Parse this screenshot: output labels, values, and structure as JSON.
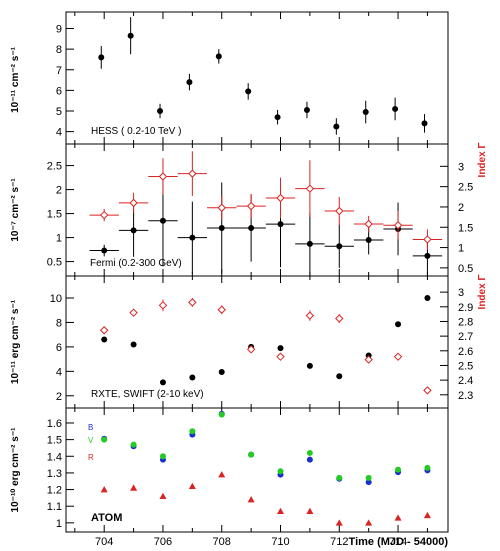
{
  "chart_data": {
    "type": "scatter",
    "shared_x": {
      "label": "Time (MJD - 54000)",
      "xlim": [
        702.7,
        715.7
      ],
      "tick_labels": [
        "704",
        "706",
        "708",
        "710",
        "712",
        "714"
      ]
    },
    "panels": [
      {
        "id": "hess",
        "label": "HESS ( 0.2-10 TeV )",
        "ylabel": "10⁻¹¹ cm⁻² s⁻¹",
        "ylim": [
          3.4,
          9.8
        ],
        "tick_labels": [
          "4",
          "5",
          "6",
          "7",
          "8",
          "9"
        ],
        "series": [
          {
            "marker": "filled-circle",
            "color": "#000000",
            "points": [
              {
                "x": 703.9,
                "y": 7.6,
                "yerr": 0.55
              },
              {
                "x": 704.9,
                "y": 8.65,
                "yerr": 0.9
              },
              {
                "x": 705.9,
                "y": 5.0,
                "yerr": 0.35
              },
              {
                "x": 706.9,
                "y": 6.4,
                "yerr": 0.4
              },
              {
                "x": 707.9,
                "y": 7.65,
                "yerr": 0.35
              },
              {
                "x": 708.9,
                "y": 5.95,
                "yerr": 0.4
              },
              {
                "x": 709.9,
                "y": 4.7,
                "yerr": 0.35
              },
              {
                "x": 710.9,
                "y": 5.05,
                "yerr": 0.4
              },
              {
                "x": 711.9,
                "y": 4.25,
                "yerr": 0.4
              },
              {
                "x": 712.9,
                "y": 4.95,
                "yerr": 0.55
              },
              {
                "x": 713.9,
                "y": 5.1,
                "yerr": 0.55
              },
              {
                "x": 714.9,
                "y": 4.4,
                "yerr": 0.45
              }
            ]
          }
        ]
      },
      {
        "id": "fermi",
        "label": "Fermi (0.2-300 GeV)",
        "ylabel": "10⁻⁷ cm⁻² s⁻¹",
        "ylim": [
          0.2,
          2.95
        ],
        "tick_labels": [
          "0.5",
          "1",
          "1.5",
          "2",
          "2.5"
        ],
        "ylabel_right": "Index Γ",
        "ylim_right": [
          0.3,
          3.55
        ],
        "tick_labels_right": [
          "0.5",
          "1",
          "1.5",
          "2",
          "2.5",
          "3"
        ],
        "series": [
          {
            "name": "flux",
            "marker": "filled-circle",
            "color": "#000000",
            "axis": "left",
            "points": [
              {
                "x": 704.0,
                "xerr": 0.5,
                "y": 0.73,
                "yerr": 0.12
              },
              {
                "x": 705.0,
                "xerr": 0.5,
                "y": 1.15,
                "yerr": 0.55
              },
              {
                "x": 706.0,
                "xerr": 0.5,
                "y": 1.35,
                "yerr": 0.95
              },
              {
                "x": 707.0,
                "xerr": 0.5,
                "y": 1.0,
                "yerr": 0.75
              },
              {
                "x": 708.0,
                "xerr": 0.5,
                "y": 1.2,
                "yerr": 0.95
              },
              {
                "x": 709.0,
                "xerr": 0.5,
                "y": 1.2,
                "yerr": 0.7
              },
              {
                "x": 710.0,
                "xerr": 0.5,
                "y": 1.28,
                "yerr": 0.9
              },
              {
                "x": 711.0,
                "xerr": 0.5,
                "y": 0.87,
                "yerr": 0.65
              },
              {
                "x": 712.0,
                "xerr": 0.5,
                "y": 0.82,
                "yerr": 0.45
              },
              {
                "x": 713.0,
                "xerr": 0.5,
                "y": 0.95,
                "yerr": 0.3
              },
              {
                "x": 714.0,
                "xerr": 0.5,
                "y": 1.18,
                "yerr": 0.55
              },
              {
                "x": 715.0,
                "xerr": 0.5,
                "y": 0.62,
                "yerr": 0.42
              }
            ]
          },
          {
            "name": "index",
            "marker": "open-diamond",
            "color": "#dd2222",
            "axis": "right",
            "points": [
              {
                "x": 704.0,
                "xerr": 0.5,
                "y": 1.8,
                "yerr": 0.15
              },
              {
                "x": 705.0,
                "xerr": 0.5,
                "y": 2.1,
                "yerr": 0.25
              },
              {
                "x": 706.0,
                "xerr": 0.5,
                "y": 2.75,
                "yerr": 0.45
              },
              {
                "x": 707.0,
                "xerr": 0.5,
                "y": 2.82,
                "yerr": 0.55
              },
              {
                "x": 708.0,
                "xerr": 0.5,
                "y": 1.98,
                "yerr": 0.3
              },
              {
                "x": 709.0,
                "xerr": 0.5,
                "y": 2.02,
                "yerr": 0.3
              },
              {
                "x": 710.0,
                "xerr": 0.5,
                "y": 2.22,
                "yerr": 0.5
              },
              {
                "x": 711.0,
                "xerr": 0.5,
                "y": 2.45,
                "yerr": 0.7
              },
              {
                "x": 712.0,
                "xerr": 0.5,
                "y": 1.9,
                "yerr": 0.35
              },
              {
                "x": 713.0,
                "xerr": 0.5,
                "y": 1.58,
                "yerr": 0.2
              },
              {
                "x": 714.0,
                "xerr": 0.5,
                "y": 1.55,
                "yerr": 0.35
              },
              {
                "x": 715.0,
                "xerr": 0.5,
                "y": 1.2,
                "yerr": 0.25
              }
            ]
          }
        ]
      },
      {
        "id": "rxte",
        "label": "RXTE, SWIFT (2-10 keV)",
        "ylabel": "10⁻¹¹ erg cm⁻² s⁻¹",
        "ylim": [
          1.0,
          11.8
        ],
        "tick_labels": [
          "2",
          "4",
          "6",
          "8",
          "10"
        ],
        "ylabel_right": "Index Γ",
        "ylim_right": [
          2.21,
          3.11
        ],
        "tick_labels_right": [
          "2.3",
          "2.4",
          "2.5",
          "2.6",
          "2.7",
          "2.8",
          "2.9",
          "3"
        ],
        "series": [
          {
            "name": "flux",
            "marker": "filled-circle",
            "color": "#000000",
            "axis": "left",
            "points": [
              {
                "x": 704.0,
                "y": 6.6
              },
              {
                "x": 705.0,
                "y": 6.2
              },
              {
                "x": 706.0,
                "y": 3.1
              },
              {
                "x": 707.0,
                "y": 3.5
              },
              {
                "x": 708.0,
                "y": 3.95
              },
              {
                "x": 709.0,
                "y": 6.0
              },
              {
                "x": 710.0,
                "y": 5.9
              },
              {
                "x": 711.0,
                "y": 4.45
              },
              {
                "x": 712.0,
                "y": 3.6
              },
              {
                "x": 713.0,
                "y": 5.3
              },
              {
                "x": 714.0,
                "y": 7.85
              },
              {
                "x": 715.0,
                "y": 10.0
              }
            ]
          },
          {
            "name": "index",
            "marker": "open-diamond",
            "color": "#dd2222",
            "axis": "right",
            "points": [
              {
                "x": 704.0,
                "y": 2.74,
                "yerr": 0.015
              },
              {
                "x": 705.0,
                "y": 2.86,
                "yerr": 0.015
              },
              {
                "x": 706.0,
                "y": 2.91,
                "yerr": 0.04
              },
              {
                "x": 707.0,
                "y": 2.93,
                "yerr": 0.03
              },
              {
                "x": 708.0,
                "y": 2.88,
                "yerr": 0.03
              },
              {
                "x": 709.0,
                "y": 2.61,
                "yerr": 0.015
              },
              {
                "x": 710.0,
                "y": 2.56,
                "yerr": 0.015
              },
              {
                "x": 711.0,
                "y": 2.84,
                "yerr": 0.035
              },
              {
                "x": 712.0,
                "y": 2.82,
                "yerr": 0.03
              },
              {
                "x": 713.0,
                "y": 2.54,
                "yerr": 0.015
              },
              {
                "x": 714.0,
                "y": 2.56,
                "yerr": 0.01
              },
              {
                "x": 715.0,
                "y": 2.33,
                "yerr": 0.015
              }
            ]
          }
        ]
      },
      {
        "id": "atom",
        "label": "ATOM",
        "ylabel": "10⁻¹⁰ erg cm⁻² s⁻¹",
        "ylim": [
          0.945,
          1.69
        ],
        "tick_labels": [
          "1",
          "1.1",
          "1.2",
          "1.3",
          "1.4",
          "1.5",
          "1.6"
        ],
        "legend": [
          {
            "letter": "B",
            "color": "#1a2fd0"
          },
          {
            "letter": "V",
            "color": "#22cc22"
          },
          {
            "letter": "R",
            "color": "#dd2222"
          }
        ],
        "series": [
          {
            "name": "B",
            "marker": "filled-circle",
            "color": "#1a2fd0",
            "points": [
              {
                "x": 704.0,
                "y": 1.505
              },
              {
                "x": 705.0,
                "y": 1.46
              },
              {
                "x": 706.0,
                "y": 1.38
              },
              {
                "x": 707.0,
                "y": 1.53
              },
              {
                "x": 708.0,
                "y": 1.655
              },
              {
                "x": 709.0,
                "y": 1.41
              },
              {
                "x": 710.0,
                "y": 1.29
              },
              {
                "x": 711.0,
                "y": 1.38
              },
              {
                "x": 712.0,
                "y": 1.265
              },
              {
                "x": 713.0,
                "y": 1.245
              },
              {
                "x": 714.0,
                "y": 1.305
              },
              {
                "x": 715.0,
                "y": 1.315
              }
            ]
          },
          {
            "name": "V",
            "marker": "filled-circle",
            "color": "#22cc22",
            "points": [
              {
                "x": 704.0,
                "y": 1.5
              },
              {
                "x": 705.0,
                "y": 1.47
              },
              {
                "x": 706.0,
                "y": 1.4
              },
              {
                "x": 707.0,
                "y": 1.55
              },
              {
                "x": 708.0,
                "y": 1.65
              },
              {
                "x": 709.0,
                "y": 1.41
              },
              {
                "x": 710.0,
                "y": 1.31
              },
              {
                "x": 711.0,
                "y": 1.42
              },
              {
                "x": 712.0,
                "y": 1.27
              },
              {
                "x": 713.0,
                "y": 1.27
              },
              {
                "x": 714.0,
                "y": 1.32
              },
              {
                "x": 715.0,
                "y": 1.33
              }
            ]
          },
          {
            "name": "R",
            "marker": "filled-triangle",
            "color": "#dd2222",
            "points": [
              {
                "x": 704.0,
                "y": 1.2
              },
              {
                "x": 705.0,
                "y": 1.21
              },
              {
                "x": 706.0,
                "y": 1.16
              },
              {
                "x": 707.0,
                "y": 1.22
              },
              {
                "x": 708.0,
                "y": 1.29
              },
              {
                "x": 709.0,
                "y": 1.14
              },
              {
                "x": 710.0,
                "y": 1.07
              },
              {
                "x": 711.0,
                "y": 1.07
              },
              {
                "x": 712.0,
                "y": 1.0
              },
              {
                "x": 713.0,
                "y": 1.0
              },
              {
                "x": 714.0,
                "y": 1.03
              },
              {
                "x": 715.0,
                "y": 1.045
              }
            ]
          }
        ]
      }
    ]
  }
}
